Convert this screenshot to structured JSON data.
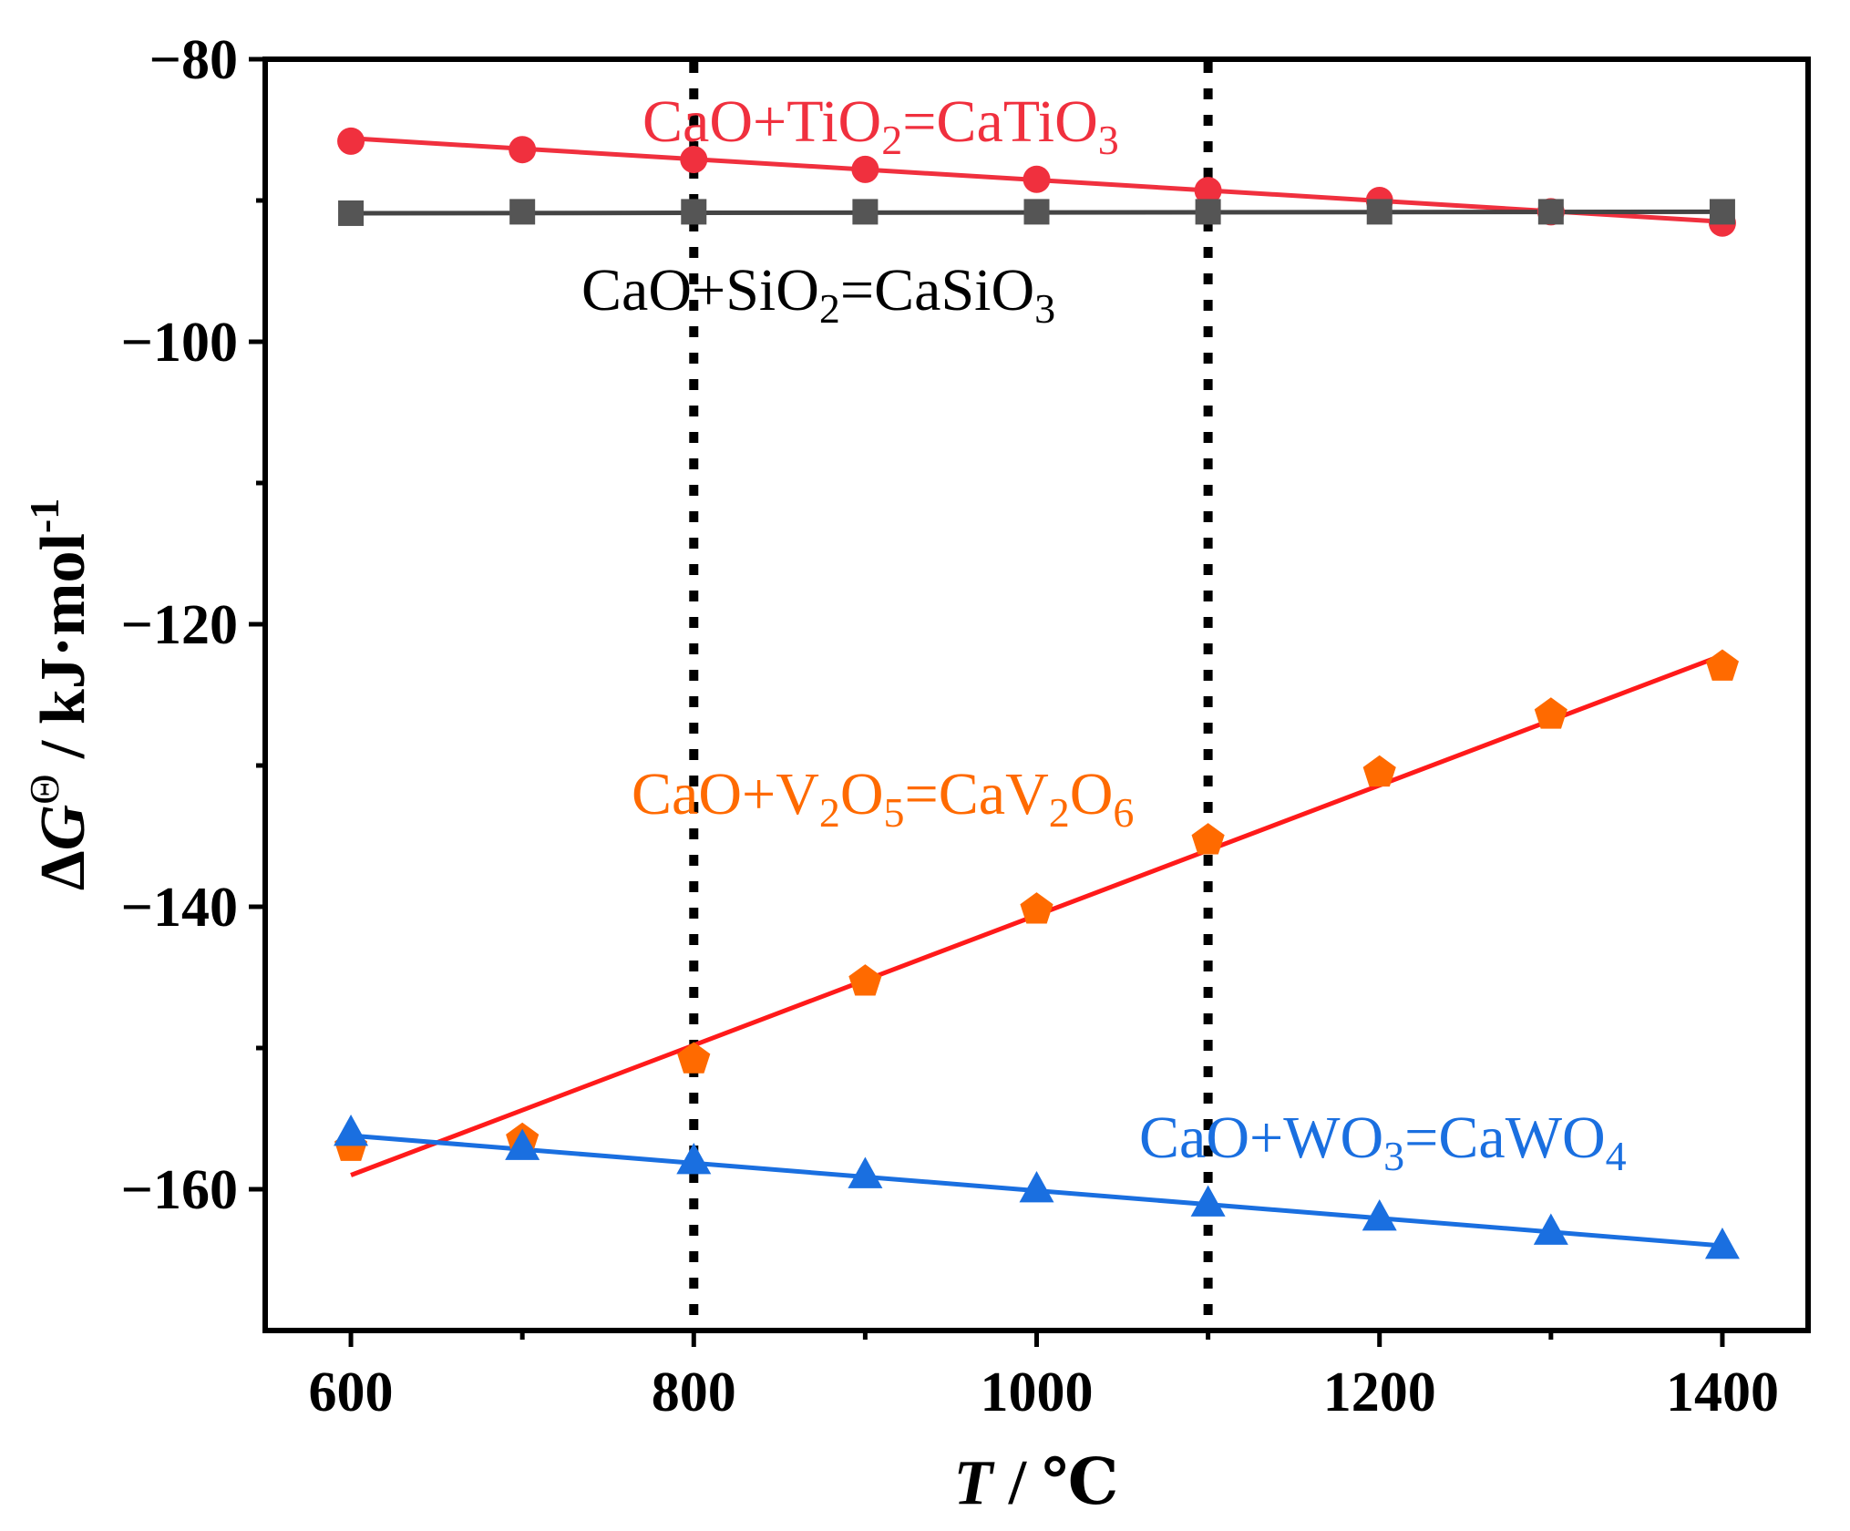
{
  "chart_data": {
    "type": "scatter",
    "title": "",
    "xlabel": {
      "var": "T",
      "unit": " / ℃"
    },
    "ylabel": {
      "delta": "Δ",
      "var": "G",
      "sup": "Θ",
      "unit": " / kJ·mol",
      "unit_sup": "-1"
    },
    "xlim": [
      550,
      1450
    ],
    "ylim": [
      -170,
      -80
    ],
    "x_ticks": [
      600,
      800,
      1000,
      1200,
      1400
    ],
    "x_tick_labels": [
      "600",
      "800",
      "1000",
      "1200",
      "1400"
    ],
    "x_minor_ticks": [
      700,
      900,
      1100,
      1300
    ],
    "y_ticks": [
      -80,
      -100,
      -120,
      -140,
      -160
    ],
    "y_tick_labels": [
      "−80",
      "−100",
      "−120",
      "−140",
      "−160"
    ],
    "y_minor_ticks": [
      -90,
      -110,
      -130,
      -150
    ],
    "grid": false,
    "reference_lines": [
      800,
      1100
    ],
    "series": [
      {
        "name": "CaO+TiO2=CaTiO3",
        "label_parts": [
          [
            "CaO+TiO",
            ""
          ],
          [
            "2",
            "sub"
          ],
          [
            "=CaTiO",
            ""
          ],
          [
            "3",
            "sub"
          ]
        ],
        "color": "#f0303e",
        "line_color": "#f0303e",
        "marker": "circle",
        "x": [
          600,
          700,
          800,
          900,
          1000,
          1100,
          1200,
          1300,
          1400
        ],
        "y": [
          -85.8,
          -86.4,
          -87.1,
          -87.8,
          -88.5,
          -89.3,
          -90.0,
          -90.8,
          -91.6
        ],
        "fit": [
          [
            600,
            -85.6
          ],
          [
            1400,
            -91.5
          ]
        ]
      },
      {
        "name": "CaO+SiO2=CaSiO3",
        "label_parts": [
          [
            "CaO+SiO",
            ""
          ],
          [
            "2",
            "sub"
          ],
          [
            "=CaSiO",
            ""
          ],
          [
            "3",
            "sub"
          ]
        ],
        "color": "#000000",
        "line_color": "#444444",
        "marker": "square",
        "x": [
          600,
          700,
          800,
          900,
          1000,
          1100,
          1200,
          1300,
          1400
        ],
        "y": [
          -90.9,
          -90.8,
          -90.8,
          -90.8,
          -90.8,
          -90.8,
          -90.8,
          -90.8,
          -90.8
        ],
        "fit": [
          [
            600,
            -90.9
          ],
          [
            1400,
            -90.8
          ]
        ]
      },
      {
        "name": "CaO+V2O5=CaV2O6",
        "label_parts": [
          [
            "CaO+V",
            ""
          ],
          [
            "2",
            "sub"
          ],
          [
            "O",
            ""
          ],
          [
            "5",
            "sub"
          ],
          [
            "=CaV",
            ""
          ],
          [
            "2",
            "sub"
          ],
          [
            "O",
            ""
          ],
          [
            "6",
            "sub"
          ]
        ],
        "color": "#ff6a00",
        "line_color": "#ff1a1a",
        "marker": "pentagon",
        "x": [
          600,
          700,
          800,
          900,
          1000,
          1100,
          1200,
          1300,
          1400
        ],
        "y": [
          -157.0,
          -156.5,
          -150.8,
          -145.3,
          -140.2,
          -135.3,
          -130.5,
          -126.4,
          -123.0
        ],
        "fit": [
          [
            600,
            -159.0
          ],
          [
            1400,
            -122.2
          ]
        ]
      },
      {
        "name": "CaO+WO3=CaWO4",
        "label_parts": [
          [
            "CaO+WO",
            ""
          ],
          [
            "3",
            "sub"
          ],
          [
            "=CaWO",
            ""
          ],
          [
            "4",
            "sub"
          ]
        ],
        "color": "#1a6fe0",
        "line_color": "#1a6fe0",
        "marker": "triangle",
        "x": [
          600,
          700,
          800,
          900,
          1000,
          1100,
          1200,
          1300,
          1400
        ],
        "y": [
          -156.0,
          -157.0,
          -158.0,
          -159.0,
          -160.0,
          -161.0,
          -162.0,
          -163.0,
          -164.0
        ],
        "fit": [
          [
            600,
            -156.2
          ],
          [
            1400,
            -164.0
          ]
        ]
      }
    ]
  }
}
